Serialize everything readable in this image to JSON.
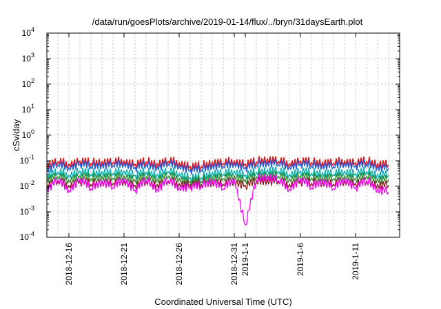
{
  "chart_data": {
    "type": "line",
    "title": "/data/run/goesPlots/archive/2019-01-14/flux/../bryn/31daysEarth.plot",
    "xlabel": "Coordinated Universal Time (UTC)",
    "ylabel": "cSv/day",
    "y_scale": "log",
    "ylim": [
      0.0001,
      10000
    ],
    "x_range": [
      "2018-12-14",
      "2019-01-15"
    ],
    "grid": true,
    "legend": "none",
    "y_ticks": [
      {
        "base": "10",
        "exp": "-4",
        "value": 0.0001
      },
      {
        "base": "10",
        "exp": "-3",
        "value": 0.001
      },
      {
        "base": "10",
        "exp": "-2",
        "value": 0.01
      },
      {
        "base": "10",
        "exp": "-1",
        "value": 0.1
      },
      {
        "base": "10",
        "exp": "0",
        "value": 1
      },
      {
        "base": "10",
        "exp": "1",
        "value": 10
      },
      {
        "base": "10",
        "exp": "2",
        "value": 100
      },
      {
        "base": "10",
        "exp": "3",
        "value": 1000
      },
      {
        "base": "10",
        "exp": "4",
        "value": 10000
      }
    ],
    "x_ticks": [
      {
        "label": "2018-12-16",
        "date": "2018-12-16"
      },
      {
        "label": "2018-12-21",
        "date": "2018-12-21"
      },
      {
        "label": "2018-12-26",
        "date": "2018-12-26"
      },
      {
        "label": "2018-12-31",
        "date": "2018-12-31"
      },
      {
        "label": "2019-1-1",
        "date": "2019-01-01"
      },
      {
        "label": "2019-1-6",
        "date": "2019-01-06"
      },
      {
        "label": "2019-1-11",
        "date": "2019-01-11"
      }
    ],
    "series": [
      {
        "color": "#ff0000",
        "x": [
          "2018-12-14",
          "2018-12-15",
          "2018-12-16",
          "2018-12-17",
          "2018-12-18",
          "2018-12-19",
          "2018-12-20",
          "2018-12-21",
          "2018-12-22",
          "2018-12-23",
          "2018-12-24",
          "2018-12-25",
          "2018-12-26",
          "2018-12-27",
          "2018-12-28",
          "2018-12-29",
          "2018-12-30",
          "2018-12-31",
          "2019-01-01",
          "2019-01-02",
          "2019-01-03",
          "2019-01-04",
          "2019-01-05",
          "2019-01-06",
          "2019-01-07",
          "2019-01-08",
          "2019-01-09",
          "2019-01-10",
          "2019-01-11",
          "2019-01-12",
          "2019-01-13",
          "2019-01-14"
        ],
        "values": [
          0.07,
          0.09,
          0.075,
          0.1,
          0.08,
          0.095,
          0.085,
          0.1,
          0.075,
          0.09,
          0.08,
          0.095,
          0.085,
          0.06,
          0.06,
          0.09,
          0.08,
          0.1,
          0.075,
          0.09,
          0.12,
          0.095,
          0.08,
          0.1,
          0.085,
          0.09,
          0.08,
          0.1,
          0.085,
          0.095,
          0.08,
          0.07
        ]
      },
      {
        "color": "#1f5fe0",
        "x": [
          "2018-12-14",
          "2018-12-15",
          "2018-12-16",
          "2018-12-17",
          "2018-12-18",
          "2018-12-19",
          "2018-12-20",
          "2018-12-21",
          "2018-12-22",
          "2018-12-23",
          "2018-12-24",
          "2018-12-25",
          "2018-12-26",
          "2018-12-27",
          "2018-12-28",
          "2018-12-29",
          "2018-12-30",
          "2018-12-31",
          "2019-01-01",
          "2019-01-02",
          "2019-01-03",
          "2019-01-04",
          "2019-01-05",
          "2019-01-06",
          "2019-01-07",
          "2019-01-08",
          "2019-01-09",
          "2019-01-10",
          "2019-01-11",
          "2019-01-12",
          "2019-01-13",
          "2019-01-14"
        ],
        "values": [
          0.05,
          0.07,
          0.055,
          0.08,
          0.06,
          0.075,
          0.065,
          0.08,
          0.055,
          0.07,
          0.06,
          0.075,
          0.065,
          0.045,
          0.045,
          0.07,
          0.06,
          0.08,
          0.055,
          0.07,
          0.09,
          0.075,
          0.06,
          0.08,
          0.065,
          0.07,
          0.06,
          0.08,
          0.065,
          0.075,
          0.06,
          0.05
        ]
      },
      {
        "color": "#00b0b0",
        "x": [
          "2018-12-14",
          "2018-12-15",
          "2018-12-16",
          "2018-12-17",
          "2018-12-18",
          "2018-12-19",
          "2018-12-20",
          "2018-12-21",
          "2018-12-22",
          "2018-12-23",
          "2018-12-24",
          "2018-12-25",
          "2018-12-26",
          "2018-12-27",
          "2018-12-28",
          "2018-12-29",
          "2018-12-30",
          "2018-12-31",
          "2019-01-01",
          "2019-01-02",
          "2019-01-03",
          "2019-01-04",
          "2019-01-05",
          "2019-01-06",
          "2019-01-07",
          "2019-01-08",
          "2019-01-09",
          "2019-01-10",
          "2019-01-11",
          "2019-01-12",
          "2019-01-13",
          "2019-01-14"
        ],
        "values": [
          0.03,
          0.035,
          0.028,
          0.04,
          0.03,
          0.038,
          0.032,
          0.04,
          0.028,
          0.036,
          0.03,
          0.038,
          0.032,
          0.022,
          0.022,
          0.036,
          0.03,
          0.04,
          0.028,
          0.035,
          0.045,
          0.038,
          0.03,
          0.04,
          0.032,
          0.035,
          0.03,
          0.04,
          0.032,
          0.038,
          0.03,
          0.028
        ]
      },
      {
        "color": "#2e8b2e",
        "x": [
          "2018-12-14",
          "2018-12-15",
          "2018-12-16",
          "2018-12-17",
          "2018-12-18",
          "2018-12-19",
          "2018-12-20",
          "2018-12-21",
          "2018-12-22",
          "2018-12-23",
          "2018-12-24",
          "2018-12-25",
          "2018-12-26",
          "2018-12-27",
          "2018-12-28",
          "2018-12-29",
          "2018-12-30",
          "2018-12-31",
          "2019-01-01",
          "2019-01-02",
          "2019-01-03",
          "2019-01-04",
          "2019-01-05",
          "2019-01-06",
          "2019-01-07",
          "2019-01-08",
          "2019-01-09",
          "2019-01-10",
          "2019-01-11",
          "2019-01-12",
          "2019-01-13",
          "2019-01-14"
        ],
        "values": [
          0.02,
          0.024,
          0.018,
          0.026,
          0.02,
          0.025,
          0.021,
          0.026,
          0.018,
          0.024,
          0.02,
          0.025,
          0.021,
          0.016,
          0.016,
          0.024,
          0.02,
          0.026,
          0.018,
          0.024,
          0.03,
          0.025,
          0.02,
          0.026,
          0.021,
          0.024,
          0.02,
          0.026,
          0.021,
          0.025,
          0.02,
          0.018
        ]
      },
      {
        "color": "#8b1a1a",
        "x": [
          "2018-12-14",
          "2018-12-15",
          "2018-12-16",
          "2018-12-17",
          "2018-12-18",
          "2018-12-19",
          "2018-12-20",
          "2018-12-21",
          "2018-12-22",
          "2018-12-23",
          "2018-12-24",
          "2018-12-25",
          "2018-12-26",
          "2018-12-27",
          "2018-12-28",
          "2018-12-29",
          "2018-12-30",
          "2018-12-31",
          "2019-01-01",
          "2019-01-02",
          "2019-01-03",
          "2019-01-04",
          "2019-01-05",
          "2019-01-06",
          "2019-01-07",
          "2019-01-08",
          "2019-01-09",
          "2019-01-10",
          "2019-01-11",
          "2019-01-12",
          "2019-01-13",
          "2019-01-14"
        ],
        "values": [
          0.012,
          0.015,
          0.011,
          0.016,
          0.012,
          0.015,
          0.013,
          0.016,
          0.011,
          0.015,
          0.012,
          0.015,
          0.013,
          0.012,
          0.012,
          0.015,
          0.012,
          0.016,
          0.011,
          0.015,
          0.018,
          0.015,
          0.012,
          0.016,
          0.013,
          0.015,
          0.012,
          0.016,
          0.013,
          0.015,
          0.012,
          0.011
        ]
      },
      {
        "color": "#ff00ff",
        "x": [
          "2018-12-14",
          "2018-12-15",
          "2018-12-16",
          "2018-12-17",
          "2018-12-18",
          "2018-12-19",
          "2018-12-20",
          "2018-12-21",
          "2018-12-22",
          "2018-12-23",
          "2018-12-24",
          "2018-12-25",
          "2018-12-26",
          "2018-12-27",
          "2018-12-28",
          "2018-12-29",
          "2018-12-30",
          "2018-12-31",
          "2019-01-01",
          "2019-01-02",
          "2019-01-03",
          "2019-01-04",
          "2019-01-05",
          "2019-01-06",
          "2019-01-07",
          "2019-01-08",
          "2019-01-09",
          "2019-01-10",
          "2019-01-11",
          "2019-01-12",
          "2019-01-13",
          "2019-01-14"
        ],
        "values": [
          0.008,
          0.018,
          0.007,
          0.02,
          0.008,
          0.017,
          0.009,
          0.02,
          0.007,
          0.018,
          0.008,
          0.017,
          0.009,
          0.01,
          0.01,
          0.018,
          0.008,
          0.02,
          0.0003,
          0.018,
          0.025,
          0.017,
          0.008,
          0.02,
          0.009,
          0.018,
          0.008,
          0.02,
          0.009,
          0.017,
          0.008,
          0.006
        ]
      }
    ]
  }
}
